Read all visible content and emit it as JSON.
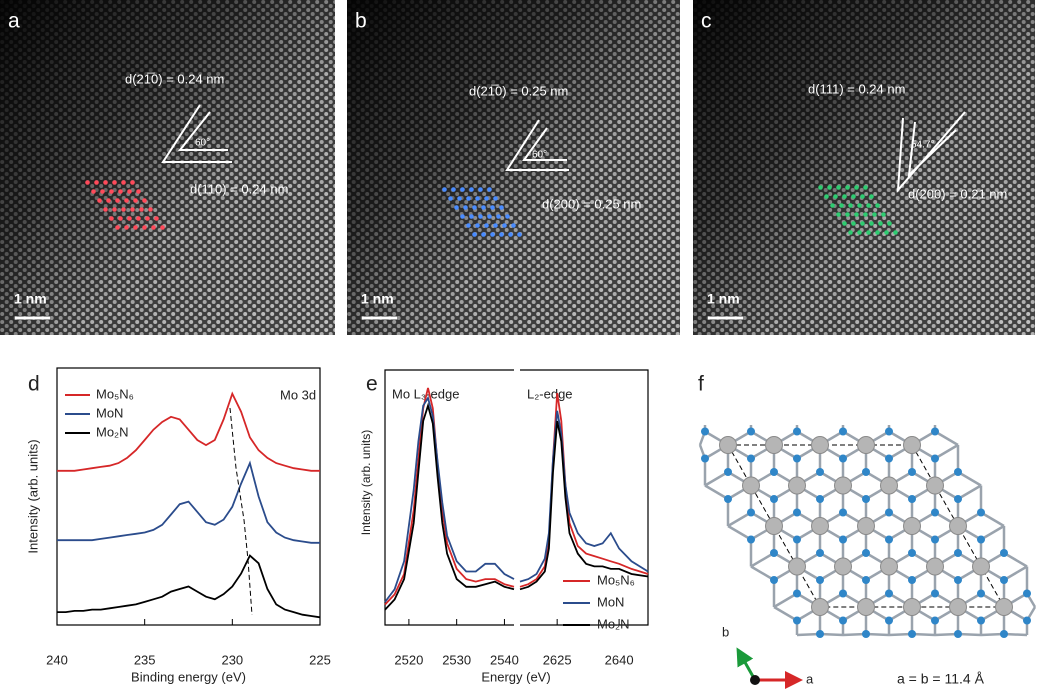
{
  "micrographs": [
    {
      "label": "a",
      "scale_bar": "1 nm",
      "spacing_1": "d(21̅0) = 0.24 nm",
      "angle": "60°",
      "spacing_2": "d(110) = 0.24 nm"
    },
    {
      "label": "b",
      "scale_bar": "1 nm",
      "spacing_1": "d(21̅0) = 0.25 nm",
      "angle": "60°",
      "spacing_2": "d(200) = 0.25 nm"
    },
    {
      "label": "c",
      "scale_bar": "1 nm",
      "spacing_1": "d(111) = 0.24 nm",
      "angle": "54.7°",
      "spacing_2": "d(200) = 0.21 nm"
    }
  ],
  "chart_data": [
    {
      "type": "line",
      "panel_label": "d",
      "annotation": "Mo 3d",
      "xlabel": "Binding energy (eV)",
      "ylabel": "Intensity (arb. units)",
      "xlim": [
        240,
        225
      ],
      "xticks": [
        240,
        235,
        230,
        225
      ],
      "ylim": [
        0,
        10
      ],
      "x": [
        240,
        239.5,
        239,
        238.5,
        238,
        237.5,
        237,
        236.5,
        236,
        235.5,
        235,
        234.5,
        234,
        233.5,
        233,
        232.5,
        232,
        231.5,
        231,
        230.5,
        230,
        229.5,
        229,
        228.5,
        228,
        227.5,
        227,
        226.5,
        226,
        225.5,
        225
      ],
      "series": [
        {
          "name": "Mo₅N₆",
          "color": "#d62728",
          "values": [
            6.0,
            6.0,
            6.0,
            6.05,
            6.1,
            6.15,
            6.2,
            6.3,
            6.5,
            6.8,
            7.2,
            7.6,
            7.9,
            8.1,
            8.0,
            7.6,
            7.2,
            7.0,
            7.2,
            8.0,
            9.0,
            8.3,
            7.3,
            6.8,
            6.5,
            6.3,
            6.2,
            6.1,
            6.05,
            6.0,
            6.0
          ]
        },
        {
          "name": "MoN",
          "color": "#2b4c8c",
          "values": [
            3.3,
            3.3,
            3.3,
            3.3,
            3.3,
            3.35,
            3.4,
            3.45,
            3.5,
            3.55,
            3.6,
            3.7,
            3.9,
            4.3,
            4.7,
            4.8,
            4.4,
            4.0,
            3.9,
            4.1,
            4.6,
            5.5,
            6.3,
            5.0,
            4.0,
            3.6,
            3.4,
            3.3,
            3.25,
            3.2,
            3.2
          ]
        },
        {
          "name": "Mo₂N",
          "color": "#000000",
          "values": [
            0.5,
            0.5,
            0.55,
            0.55,
            0.6,
            0.6,
            0.65,
            0.7,
            0.75,
            0.8,
            0.9,
            1.0,
            1.1,
            1.3,
            1.4,
            1.5,
            1.3,
            1.1,
            1.0,
            1.2,
            1.5,
            2.0,
            2.7,
            2.4,
            1.4,
            0.8,
            0.6,
            0.5,
            0.4,
            0.35,
            0.3
          ]
        }
      ]
    },
    {
      "type": "broken-line",
      "panel_label": "e",
      "xlabel": "Energy (eV)",
      "ylabel": "Intensity (arb. units)",
      "ylim": [
        0,
        10
      ],
      "segments": [
        {
          "annotation": "Mo L₃-edge",
          "xlim": [
            2515,
            2542
          ],
          "xticks": [
            2520,
            2530,
            2540
          ]
        },
        {
          "annotation": "L₂-edge",
          "xlim": [
            2616,
            2647
          ],
          "xticks": [
            2625,
            2640
          ]
        }
      ],
      "x": [
        2515,
        2517,
        2519,
        2521,
        2522,
        2523,
        2524,
        2525,
        2526,
        2527,
        2528,
        2530,
        2532,
        2534,
        2536,
        2538,
        2540,
        2542,
        2616,
        2618,
        2620,
        2622,
        2623,
        2624,
        2625,
        2626,
        2627,
        2628,
        2630,
        2632,
        2634,
        2636,
        2638,
        2640,
        2643,
        2647
      ],
      "series": [
        {
          "name": "Mo₅N₆",
          "color": "#d62728",
          "values": [
            0.8,
            1.2,
            2.0,
            4.5,
            6.5,
            8.5,
            9.3,
            8.5,
            6.3,
            4.5,
            3.2,
            2.2,
            1.8,
            1.7,
            1.8,
            1.8,
            1.6,
            1.5,
            1.5,
            1.6,
            1.8,
            2.3,
            3.2,
            6.5,
            9.1,
            8.0,
            5.5,
            4.0,
            3.1,
            2.8,
            2.7,
            2.6,
            2.5,
            2.4,
            2.2,
            2.0
          ]
        },
        {
          "name": "MoN",
          "color": "#2b4c8c",
          "values": [
            0.9,
            1.4,
            2.5,
            5.3,
            7.2,
            8.6,
            8.9,
            8.2,
            6.4,
            4.8,
            3.5,
            2.5,
            2.1,
            2.1,
            2.4,
            2.4,
            2.0,
            1.8,
            1.7,
            1.8,
            2.0,
            2.6,
            3.6,
            6.5,
            8.4,
            7.5,
            5.5,
            4.4,
            3.6,
            3.2,
            3.1,
            3.2,
            3.6,
            3.0,
            2.5,
            2.1
          ]
        },
        {
          "name": "Mo₂N",
          "color": "#000000",
          "values": [
            0.6,
            1.0,
            1.8,
            4.0,
            6.0,
            8.0,
            8.6,
            7.9,
            5.8,
            4.0,
            2.8,
            1.8,
            1.5,
            1.5,
            1.6,
            1.7,
            1.5,
            1.4,
            1.4,
            1.5,
            1.7,
            2.1,
            3.0,
            6.0,
            8.0,
            7.2,
            5.0,
            3.6,
            2.8,
            2.4,
            2.3,
            2.3,
            2.2,
            2.2,
            2.0,
            1.9
          ]
        }
      ]
    }
  ],
  "diagram": {
    "label": "f",
    "axis_b": "b",
    "axis_a": "a",
    "lattice": "a = b = 11.4 Å"
  }
}
